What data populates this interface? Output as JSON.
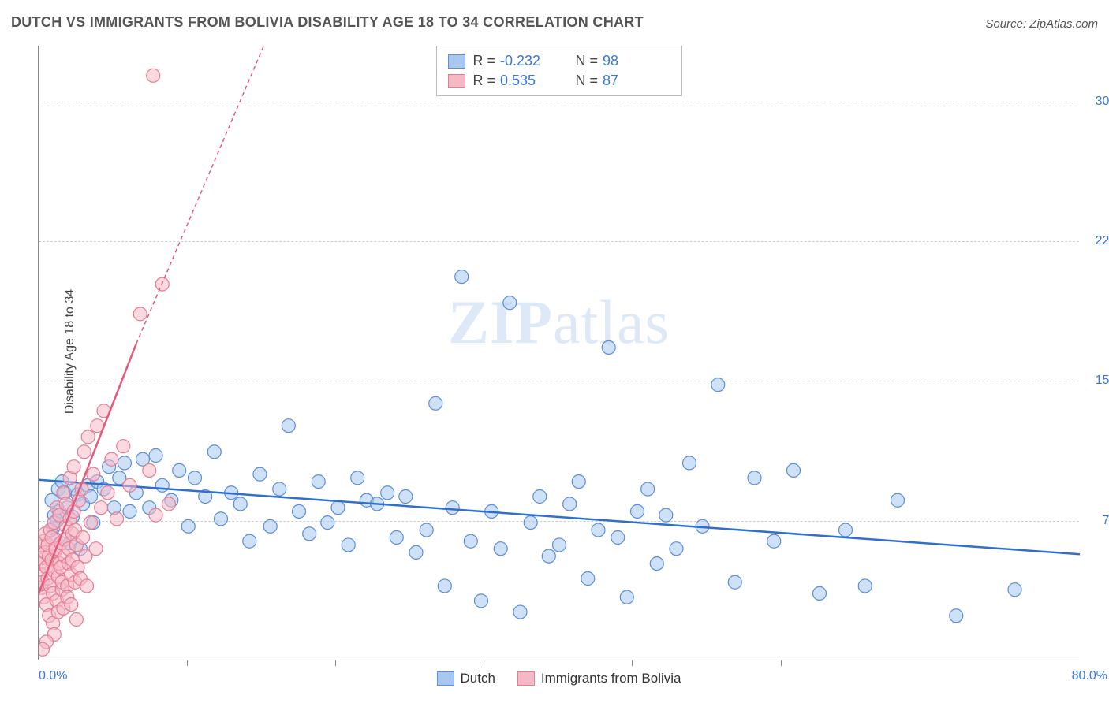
{
  "title": "DUTCH VS IMMIGRANTS FROM BOLIVIA DISABILITY AGE 18 TO 34 CORRELATION CHART",
  "source": "Source: ZipAtlas.com",
  "ylabel": "Disability Age 18 to 34",
  "watermark": "ZIPatlas",
  "chart": {
    "type": "scatter",
    "xlim": [
      0,
      80
    ],
    "ylim": [
      0,
      33
    ],
    "x_axis_label_min": "0.0%",
    "x_axis_label_max": "80.0%",
    "xtick_positions": [
      0,
      11.4,
      22.8,
      34.2,
      45.6,
      57
    ],
    "ytick_values": [
      7.5,
      15.0,
      22.5,
      30.0
    ],
    "ytick_labels": [
      "7.5%",
      "15.0%",
      "22.5%",
      "30.0%"
    ],
    "grid_color": "#d0d0d0",
    "background_color": "#ffffff",
    "marker_radius": 8.5,
    "marker_stroke_width": 1.2,
    "line_width": 2.5,
    "series": [
      {
        "name": "Dutch",
        "fill": "#a8c8f0",
        "stroke": "#5b8edb",
        "fill_opacity": 0.55,
        "r": -0.232,
        "n": 98,
        "regression": {
          "x1": 0,
          "y1": 9.7,
          "x2": 80,
          "y2": 5.7,
          "dash": "none",
          "color": "#2e6fd1"
        },
        "points": [
          [
            1.2,
            7.8
          ],
          [
            1.0,
            8.6
          ],
          [
            1.5,
            9.2
          ],
          [
            1.1,
            7.1
          ],
          [
            1.6,
            8.0
          ],
          [
            1.3,
            6.5
          ],
          [
            1.8,
            9.6
          ],
          [
            1.4,
            7.5
          ],
          [
            2.2,
            8.2
          ],
          [
            2.0,
            9.0
          ],
          [
            2.6,
            7.7
          ],
          [
            2.4,
            6.3
          ],
          [
            2.8,
            9.2
          ],
          [
            3.0,
            8.9
          ],
          [
            3.4,
            8.4
          ],
          [
            3.2,
            6.0
          ],
          [
            3.8,
            9.4
          ],
          [
            4.0,
            8.8
          ],
          [
            4.5,
            9.6
          ],
          [
            4.2,
            7.4
          ],
          [
            5.0,
            9.2
          ],
          [
            5.4,
            10.4
          ],
          [
            5.8,
            8.2
          ],
          [
            6.2,
            9.8
          ],
          [
            6.6,
            10.6
          ],
          [
            7.0,
            8.0
          ],
          [
            7.5,
            9.0
          ],
          [
            8.0,
            10.8
          ],
          [
            8.5,
            8.2
          ],
          [
            9.0,
            11.0
          ],
          [
            9.5,
            9.4
          ],
          [
            10.2,
            8.6
          ],
          [
            10.8,
            10.2
          ],
          [
            11.5,
            7.2
          ],
          [
            12.0,
            9.8
          ],
          [
            12.8,
            8.8
          ],
          [
            13.5,
            11.2
          ],
          [
            14.0,
            7.6
          ],
          [
            14.8,
            9.0
          ],
          [
            15.5,
            8.4
          ],
          [
            16.2,
            6.4
          ],
          [
            17.0,
            10.0
          ],
          [
            17.8,
            7.2
          ],
          [
            18.5,
            9.2
          ],
          [
            19.2,
            12.6
          ],
          [
            20.0,
            8.0
          ],
          [
            20.8,
            6.8
          ],
          [
            21.5,
            9.6
          ],
          [
            22.2,
            7.4
          ],
          [
            23.0,
            8.2
          ],
          [
            23.8,
            6.2
          ],
          [
            24.5,
            9.8
          ],
          [
            25.2,
            8.6
          ],
          [
            26.0,
            8.4
          ],
          [
            26.8,
            9.0
          ],
          [
            27.5,
            6.6
          ],
          [
            28.2,
            8.8
          ],
          [
            29.0,
            5.8
          ],
          [
            29.8,
            7.0
          ],
          [
            30.5,
            13.8
          ],
          [
            31.2,
            4.0
          ],
          [
            31.8,
            8.2
          ],
          [
            32.5,
            20.6
          ],
          [
            33.2,
            6.4
          ],
          [
            34.0,
            3.2
          ],
          [
            34.8,
            8.0
          ],
          [
            35.5,
            6.0
          ],
          [
            36.2,
            19.2
          ],
          [
            37.0,
            2.6
          ],
          [
            37.8,
            7.4
          ],
          [
            38.5,
            8.8
          ],
          [
            39.2,
            5.6
          ],
          [
            40.0,
            6.2
          ],
          [
            40.8,
            8.4
          ],
          [
            41.5,
            9.6
          ],
          [
            42.2,
            4.4
          ],
          [
            43.0,
            7.0
          ],
          [
            43.8,
            16.8
          ],
          [
            44.5,
            6.6
          ],
          [
            45.2,
            3.4
          ],
          [
            46.0,
            8.0
          ],
          [
            46.8,
            9.2
          ],
          [
            47.5,
            5.2
          ],
          [
            48.2,
            7.8
          ],
          [
            49.0,
            6.0
          ],
          [
            50.0,
            10.6
          ],
          [
            51.0,
            7.2
          ],
          [
            52.2,
            14.8
          ],
          [
            53.5,
            4.2
          ],
          [
            55.0,
            9.8
          ],
          [
            56.5,
            6.4
          ],
          [
            58.0,
            10.2
          ],
          [
            60.0,
            3.6
          ],
          [
            62.0,
            7.0
          ],
          [
            63.5,
            4.0
          ],
          [
            66.0,
            8.6
          ],
          [
            70.5,
            2.4
          ],
          [
            75.0,
            3.8
          ]
        ]
      },
      {
        "name": "Immigrants from Bolivia",
        "fill": "#f5b9c6",
        "stroke": "#e87c94",
        "fill_opacity": 0.55,
        "r": 0.535,
        "n": 87,
        "regression": {
          "x1": 0,
          "y1": 3.6,
          "x2": 7.5,
          "y2": 17.0,
          "dash": "none",
          "color": "#e35a7a"
        },
        "regression_extend": {
          "x1": 7.5,
          "y1": 17.0,
          "x2": 17.3,
          "y2": 33.0,
          "dash": "5,4",
          "color": "#e35a7a"
        },
        "points": [
          [
            0.1,
            5.2
          ],
          [
            0.2,
            4.6
          ],
          [
            0.1,
            6.1
          ],
          [
            0.3,
            5.5
          ],
          [
            0.2,
            3.9
          ],
          [
            0.4,
            6.4
          ],
          [
            0.3,
            4.2
          ],
          [
            0.5,
            5.8
          ],
          [
            0.4,
            3.4
          ],
          [
            0.6,
            5.0
          ],
          [
            0.5,
            6.8
          ],
          [
            0.7,
            4.4
          ],
          [
            0.6,
            3.0
          ],
          [
            0.8,
            5.6
          ],
          [
            0.7,
            6.2
          ],
          [
            0.9,
            4.0
          ],
          [
            0.8,
            2.4
          ],
          [
            1.0,
            5.4
          ],
          [
            0.9,
            7.0
          ],
          [
            1.1,
            3.6
          ],
          [
            1.0,
            6.6
          ],
          [
            1.2,
            4.8
          ],
          [
            1.1,
            2.0
          ],
          [
            1.3,
            5.9
          ],
          [
            1.2,
            7.4
          ],
          [
            1.4,
            3.2
          ],
          [
            1.3,
            6.0
          ],
          [
            1.5,
            4.5
          ],
          [
            1.4,
            8.2
          ],
          [
            1.6,
            5.2
          ],
          [
            1.5,
            2.6
          ],
          [
            1.7,
            6.3
          ],
          [
            1.6,
            7.8
          ],
          [
            1.8,
            3.8
          ],
          [
            1.7,
            5.0
          ],
          [
            1.9,
            9.0
          ],
          [
            1.8,
            4.2
          ],
          [
            2.0,
            6.5
          ],
          [
            1.9,
            2.8
          ],
          [
            2.1,
            7.2
          ],
          [
            2.0,
            5.6
          ],
          [
            2.2,
            4.0
          ],
          [
            2.1,
            8.4
          ],
          [
            2.3,
            6.0
          ],
          [
            2.2,
            3.4
          ],
          [
            2.4,
            7.6
          ],
          [
            2.3,
            5.2
          ],
          [
            2.5,
            4.6
          ],
          [
            2.4,
            9.8
          ],
          [
            2.6,
            6.8
          ],
          [
            2.5,
            3.0
          ],
          [
            2.7,
            8.0
          ],
          [
            2.6,
            5.4
          ],
          [
            2.8,
            4.2
          ],
          [
            2.7,
            10.4
          ],
          [
            2.9,
            6.2
          ],
          [
            2.8,
            7.0
          ],
          [
            3.0,
            5.0
          ],
          [
            3.1,
            8.6
          ],
          [
            3.2,
            4.4
          ],
          [
            3.3,
            9.2
          ],
          [
            3.4,
            6.6
          ],
          [
            3.5,
            11.2
          ],
          [
            3.6,
            5.6
          ],
          [
            3.8,
            12.0
          ],
          [
            4.0,
            7.4
          ],
          [
            4.2,
            10.0
          ],
          [
            4.5,
            12.6
          ],
          [
            4.8,
            8.2
          ],
          [
            5.0,
            13.4
          ],
          [
            5.3,
            9.0
          ],
          [
            5.6,
            10.8
          ],
          [
            6.0,
            7.6
          ],
          [
            6.5,
            11.5
          ],
          [
            7.0,
            9.4
          ],
          [
            7.8,
            18.6
          ],
          [
            8.5,
            10.2
          ],
          [
            8.8,
            31.4
          ],
          [
            9.0,
            7.8
          ],
          [
            9.5,
            20.2
          ],
          [
            10.0,
            8.4
          ],
          [
            4.4,
            6.0
          ],
          [
            3.7,
            4.0
          ],
          [
            2.9,
            2.2
          ],
          [
            1.2,
            1.4
          ],
          [
            0.6,
            1.0
          ],
          [
            0.3,
            0.6
          ]
        ]
      }
    ],
    "legend_bottom": [
      {
        "label": "Dutch",
        "fill": "#a8c8f0",
        "stroke": "#5b8edb"
      },
      {
        "label": "Immigrants from Bolivia",
        "fill": "#f5b9c6",
        "stroke": "#e87c94"
      }
    ]
  }
}
